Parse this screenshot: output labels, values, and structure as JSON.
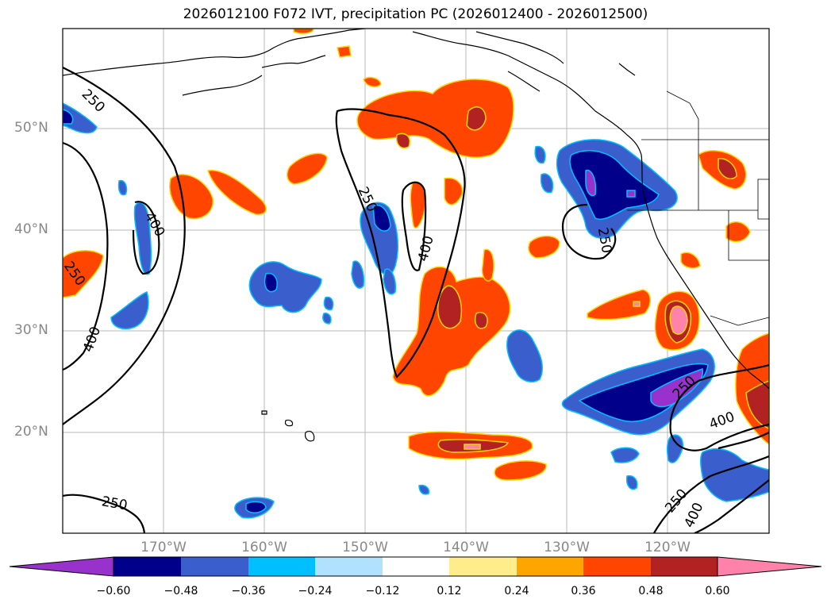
{
  "title": "2026012100 F072 IVT, precipitation PC (2026012400 - 2026012500)",
  "lat_labels": [
    "50°N",
    "40°N",
    "30°N",
    "20°N"
  ],
  "lon_labels": [
    "170°W",
    "160°W",
    "150°W",
    "140°W",
    "130°W",
    "120°W"
  ],
  "colorbar": {
    "ticks": [
      "−0.60",
      "−0.48",
      "−0.36",
      "−0.24",
      "−0.12",
      "0.12",
      "0.24",
      "0.36",
      "0.48",
      "0.60"
    ],
    "colors": [
      "#9932cc",
      "#00008b",
      "#3a5fcd",
      "#00bfff",
      "#b0e2ff",
      "#ffffff",
      "#ffec8b",
      "#ffa500",
      "#ff4500",
      "#b22222",
      "#ff82ab"
    ]
  },
  "contour_labels": [
    "250",
    "400"
  ],
  "colors": {
    "orange_red": "#ff4500",
    "dark_red": "#b22222",
    "pink": "#ff82ab",
    "navy": "#00008b",
    "blue": "#3a5fcd",
    "purple": "#9932cc",
    "sky": "#00bfff",
    "light_sky": "#b0e2ff",
    "gold": "#ffd700"
  }
}
